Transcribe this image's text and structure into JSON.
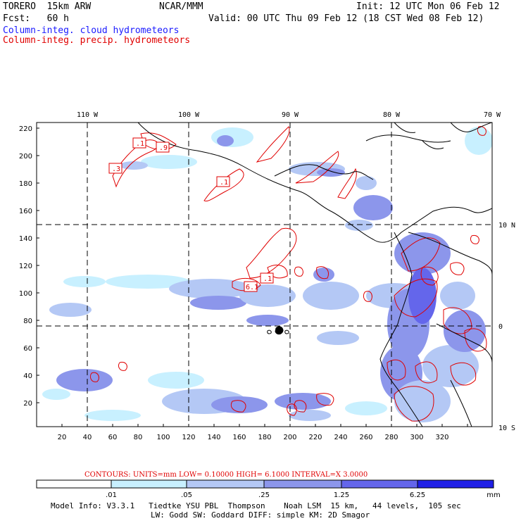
{
  "header": {
    "model": "TORERO  15km ARW",
    "org": "NCAR/MMM",
    "init": "Init: 12 UTC Mon 06 Feb 12",
    "fcst": "Fcst:   60 h",
    "valid": "Valid: 00 UTC Thu 09 Feb 12 (18 CST Wed 08 Feb 12)",
    "field1": "Column-integ. cloud hydrometeors",
    "field2": "Column-integ. precip. hydrometeors"
  },
  "axes": {
    "x_ticks": [
      "20",
      "40",
      "60",
      "80",
      "100",
      "120",
      "140",
      "160",
      "180",
      "200",
      "220",
      "240",
      "260",
      "280",
      "300",
      "320"
    ],
    "y_ticks": [
      "20",
      "40",
      "60",
      "80",
      "100",
      "120",
      "140",
      "160",
      "180",
      "200",
      "220"
    ],
    "lon_labels": [
      "110 W",
      "100 W",
      "90 W",
      "80 W",
      "70 W"
    ],
    "lat_labels": [
      "10 N",
      "0",
      "10 S"
    ]
  },
  "contour_labels": [
    ".1",
    ".9",
    ".3",
    ".1",
    ".1",
    "6.1"
  ],
  "contours_info": "CONTOURS:  UNITS=mm  LOW= 0.10000     HIGH=  6.1000     INTERVAL=X  3.0000",
  "colorbar": {
    "ticks": [
      ".01",
      ".05",
      ".25",
      "1.25",
      "6.25"
    ],
    "unit": "mm",
    "colors": [
      "#ffffff",
      "#c8f0ff",
      "#b4c8f5",
      "#8c96eb",
      "#6466eb",
      "#3c3ce6",
      "#1414e6"
    ]
  },
  "footer": {
    "line1": "Model Info: V3.3.1   Tiedtke YSU PBL  Thompson    Noah LSM  15 km,   44 levels,  105 sec",
    "line2": "LW: Godd SW: Goddard DIFF: simple KM: 2D Smagor"
  }
}
